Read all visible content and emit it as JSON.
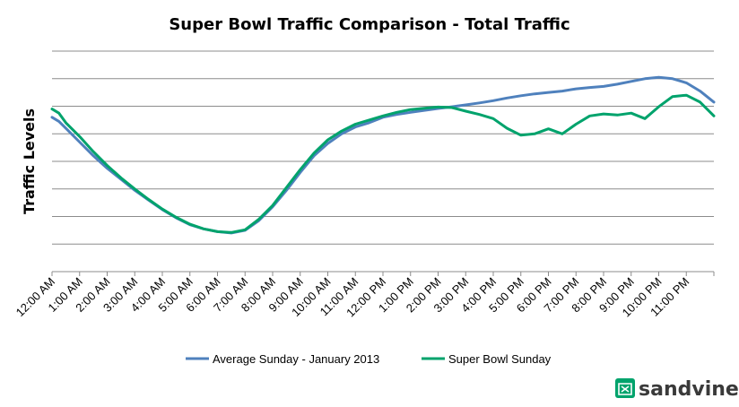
{
  "chart_data": {
    "type": "line",
    "title": "Super Bowl Traffic Comparison - Total Traffic",
    "ylabel": "Traffic Levels",
    "xlabel": "",
    "x_ticks": [
      "12:00 AM",
      "1:00 AM",
      "2:00 AM",
      "3:00 AM",
      "4:00 AM",
      "5:00 AM",
      "6:00 AM",
      "7:00 AM",
      "8:00 AM",
      "9:00 AM",
      "10:00 AM",
      "11:00 AM",
      "12:00 PM",
      "1:00 PM",
      "2:00 PM",
      "3:00 PM",
      "4:00 PM",
      "5:00 PM",
      "6:00 PM",
      "7:00 PM",
      "8:00 PM",
      "9:00 PM",
      "10:00 PM",
      "11:00 PM"
    ],
    "xlim": [
      0,
      24
    ],
    "ylim": [
      0,
      8
    ],
    "y_gridlines": [
      1,
      2,
      3,
      4,
      5,
      6,
      7,
      8
    ],
    "y_tick_labels_shown": false,
    "legend_position": "bottom",
    "series": [
      {
        "name": "Average Sunday - January 2013",
        "color": "#4f81bd",
        "points": [
          [
            0,
            5.6
          ],
          [
            0.25,
            5.45
          ],
          [
            0.5,
            5.2
          ],
          [
            1,
            4.7
          ],
          [
            1.5,
            4.2
          ],
          [
            2,
            3.75
          ],
          [
            2.5,
            3.35
          ],
          [
            3,
            2.95
          ],
          [
            3.5,
            2.6
          ],
          [
            4,
            2.25
          ],
          [
            4.5,
            1.95
          ],
          [
            5,
            1.7
          ],
          [
            5.5,
            1.55
          ],
          [
            6,
            1.45
          ],
          [
            6.5,
            1.4
          ],
          [
            7,
            1.5
          ],
          [
            7.5,
            1.85
          ],
          [
            8,
            2.35
          ],
          [
            8.5,
            2.95
          ],
          [
            9,
            3.6
          ],
          [
            9.5,
            4.2
          ],
          [
            10,
            4.65
          ],
          [
            10.5,
            5.0
          ],
          [
            11,
            5.25
          ],
          [
            11.5,
            5.4
          ],
          [
            12,
            5.6
          ],
          [
            12.5,
            5.7
          ],
          [
            13,
            5.78
          ],
          [
            13.5,
            5.85
          ],
          [
            14,
            5.92
          ],
          [
            14.5,
            5.98
          ],
          [
            15,
            6.05
          ],
          [
            15.5,
            6.12
          ],
          [
            16,
            6.2
          ],
          [
            16.5,
            6.3
          ],
          [
            17,
            6.38
          ],
          [
            17.5,
            6.45
          ],
          [
            18,
            6.5
          ],
          [
            18.5,
            6.55
          ],
          [
            19,
            6.63
          ],
          [
            19.5,
            6.68
          ],
          [
            20,
            6.72
          ],
          [
            20.5,
            6.8
          ],
          [
            21,
            6.9
          ],
          [
            21.5,
            7.0
          ],
          [
            22,
            7.05
          ],
          [
            22.5,
            7.0
          ],
          [
            23,
            6.85
          ],
          [
            23.5,
            6.55
          ],
          [
            24,
            6.15
          ]
        ]
      },
      {
        "name": "Super Bowl Sunday",
        "color": "#00a36c",
        "points": [
          [
            0,
            5.9
          ],
          [
            0.25,
            5.75
          ],
          [
            0.5,
            5.4
          ],
          [
            1,
            4.9
          ],
          [
            1.5,
            4.35
          ],
          [
            2,
            3.85
          ],
          [
            2.5,
            3.4
          ],
          [
            3,
            3.0
          ],
          [
            3.5,
            2.62
          ],
          [
            4,
            2.27
          ],
          [
            4.5,
            1.97
          ],
          [
            5,
            1.72
          ],
          [
            5.5,
            1.55
          ],
          [
            6,
            1.45
          ],
          [
            6.5,
            1.42
          ],
          [
            7,
            1.52
          ],
          [
            7.5,
            1.9
          ],
          [
            8,
            2.4
          ],
          [
            8.5,
            3.05
          ],
          [
            9,
            3.7
          ],
          [
            9.5,
            4.3
          ],
          [
            10,
            4.78
          ],
          [
            10.5,
            5.1
          ],
          [
            11,
            5.35
          ],
          [
            11.5,
            5.5
          ],
          [
            12,
            5.65
          ],
          [
            12.5,
            5.78
          ],
          [
            13,
            5.88
          ],
          [
            13.5,
            5.93
          ],
          [
            14,
            5.97
          ],
          [
            14.5,
            5.95
          ],
          [
            15,
            5.82
          ],
          [
            15.5,
            5.7
          ],
          [
            16,
            5.55
          ],
          [
            16.5,
            5.2
          ],
          [
            17,
            4.95
          ],
          [
            17.5,
            5.0
          ],
          [
            18,
            5.18
          ],
          [
            18.5,
            5.0
          ],
          [
            19,
            5.35
          ],
          [
            19.5,
            5.65
          ],
          [
            20,
            5.72
          ],
          [
            20.5,
            5.68
          ],
          [
            21,
            5.75
          ],
          [
            21.5,
            5.55
          ],
          [
            22,
            5.98
          ],
          [
            22.5,
            6.35
          ],
          [
            23,
            6.4
          ],
          [
            23.5,
            6.15
          ],
          [
            24,
            5.65
          ]
        ]
      }
    ]
  },
  "brand": {
    "name": "sandvine"
  }
}
